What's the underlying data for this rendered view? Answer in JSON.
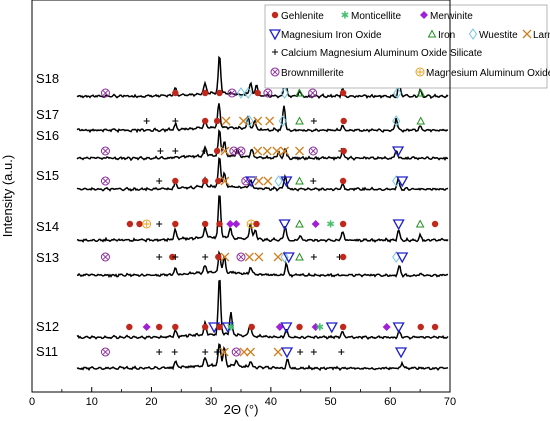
{
  "chart_data": {
    "type": "line",
    "xlabel": "2Θ (°)",
    "ylabel": "Intensity (a.u.)",
    "xlim": [
      0,
      70
    ],
    "xticks": [
      0,
      10,
      20,
      30,
      40,
      50,
      60,
      70
    ],
    "legend_position": "top-right",
    "phases": [
      {
        "id": "gehlenite",
        "label": "Gehlenite",
        "marker": "dot",
        "color": "#c0281c"
      },
      {
        "id": "monticellite",
        "label": "Monticellite",
        "marker": "star",
        "color": "#48c070"
      },
      {
        "id": "merwinite",
        "label": "Merwinite",
        "marker": "diamond",
        "color": "#a020d8"
      },
      {
        "id": "mgfe-oxide",
        "label": "Magnesium Iron Oxide",
        "marker": "triangle-down",
        "color": "#2020c8"
      },
      {
        "id": "iron",
        "label": "Iron",
        "marker": "triangle-up",
        "color": "#209020"
      },
      {
        "id": "wuestite",
        "label": "Wuestite",
        "marker": "diamond-open",
        "color": "#70c8e0"
      },
      {
        "id": "larnite",
        "label": "Larnite",
        "marker": "cross",
        "color": "#d08020"
      },
      {
        "id": "cmas",
        "label": "Calcium Magnesium Aluminum Oxide Silicate",
        "marker": "plus",
        "color": "#000000"
      },
      {
        "id": "brownmillerite",
        "label": "Brownmillerite",
        "marker": "circle-x",
        "color": "#8a2a9a"
      },
      {
        "id": "mgal-oxide",
        "label": "Magnesium Aluminum Oxide",
        "marker": "circle-plus",
        "color": "#e8a020"
      }
    ],
    "series": [
      {
        "name": "S18",
        "peaks": [
          {
            "x": 31.4,
            "h": 38
          },
          {
            "x": 29.0,
            "h": 10
          },
          {
            "x": 24.0,
            "h": 8
          },
          {
            "x": 36.6,
            "h": 13
          },
          {
            "x": 37.6,
            "h": 11
          },
          {
            "x": 42.4,
            "h": 22
          },
          {
            "x": 52.0,
            "h": 8
          },
          {
            "x": 61.5,
            "h": 14
          },
          {
            "x": 65.0,
            "h": 6
          },
          {
            "x": 44.8,
            "h": 5
          }
        ],
        "markers": [
          {
            "x": 12.3,
            "phase": "brownmillerite"
          },
          {
            "x": 24.0,
            "phase": "gehlenite"
          },
          {
            "x": 29.0,
            "phase": "gehlenite"
          },
          {
            "x": 31.4,
            "phase": "gehlenite"
          },
          {
            "x": 33.5,
            "phase": "brownmillerite"
          },
          {
            "x": 35.0,
            "phase": "wuestite"
          },
          {
            "x": 36.2,
            "phase": "wuestite"
          },
          {
            "x": 37.8,
            "phase": "gehlenite"
          },
          {
            "x": 39.5,
            "phase": "brownmillerite"
          },
          {
            "x": 42.3,
            "phase": "wuestite"
          },
          {
            "x": 44.8,
            "phase": "iron"
          },
          {
            "x": 47.0,
            "phase": "brownmillerite"
          },
          {
            "x": 52.1,
            "phase": "gehlenite"
          },
          {
            "x": 61.2,
            "phase": "wuestite"
          },
          {
            "x": 65.1,
            "phase": "iron"
          }
        ]
      },
      {
        "name": "S17",
        "peaks": [
          {
            "x": 31.3,
            "h": 24
          },
          {
            "x": 36.2,
            "h": 12
          },
          {
            "x": 37.3,
            "h": 8
          },
          {
            "x": 42.2,
            "h": 26
          },
          {
            "x": 29.0,
            "h": 6
          },
          {
            "x": 24.0,
            "h": 5
          },
          {
            "x": 52.0,
            "h": 5
          },
          {
            "x": 61.0,
            "h": 12
          },
          {
            "x": 65.0,
            "h": 4
          }
        ],
        "markers": [
          {
            "x": 19.2,
            "phase": "cmas"
          },
          {
            "x": 24.0,
            "phase": "cmas"
          },
          {
            "x": 29.0,
            "phase": "gehlenite"
          },
          {
            "x": 31.0,
            "phase": "gehlenite"
          },
          {
            "x": 32.5,
            "phase": "larnite"
          },
          {
            "x": 35.4,
            "phase": "larnite"
          },
          {
            "x": 36.4,
            "phase": "wuestite"
          },
          {
            "x": 37.8,
            "phase": "larnite"
          },
          {
            "x": 39.8,
            "phase": "larnite"
          },
          {
            "x": 42.0,
            "phase": "wuestite"
          },
          {
            "x": 44.8,
            "phase": "iron"
          },
          {
            "x": 47.2,
            "phase": "cmas"
          },
          {
            "x": 52.2,
            "phase": "gehlenite"
          },
          {
            "x": 61.0,
            "phase": "wuestite"
          },
          {
            "x": 65.1,
            "phase": "iron"
          }
        ]
      },
      {
        "name": "S16",
        "peaks": [
          {
            "x": 31.4,
            "h": 26
          },
          {
            "x": 32.2,
            "h": 14
          },
          {
            "x": 29.0,
            "h": 8
          },
          {
            "x": 34.4,
            "h": 7
          },
          {
            "x": 36.8,
            "h": 8
          },
          {
            "x": 41.3,
            "h": 6
          },
          {
            "x": 42.4,
            "h": 10
          },
          {
            "x": 61.0,
            "h": 8
          },
          {
            "x": 52.0,
            "h": 6
          }
        ],
        "markers": [
          {
            "x": 12.3,
            "phase": "brownmillerite"
          },
          {
            "x": 21.5,
            "phase": "cmas"
          },
          {
            "x": 24.0,
            "phase": "cmas"
          },
          {
            "x": 28.9,
            "phase": "cmas"
          },
          {
            "x": 31.0,
            "phase": "gehlenite"
          },
          {
            "x": 32.3,
            "phase": "larnite"
          },
          {
            "x": 33.8,
            "phase": "brownmillerite"
          },
          {
            "x": 35.0,
            "phase": "brownmillerite"
          },
          {
            "x": 37.8,
            "phase": "larnite"
          },
          {
            "x": 39.4,
            "phase": "larnite"
          },
          {
            "x": 41.0,
            "phase": "larnite"
          },
          {
            "x": 42.3,
            "phase": "larnite"
          },
          {
            "x": 44.8,
            "phase": "larnite"
          },
          {
            "x": 47.1,
            "phase": "brownmillerite"
          },
          {
            "x": 51.8,
            "phase": "cmas"
          },
          {
            "x": 52.2,
            "phase": "gehlenite"
          },
          {
            "x": 61.3,
            "phase": "mgfe-oxide"
          }
        ]
      },
      {
        "name": "S15",
        "peaks": [
          {
            "x": 31.4,
            "h": 30
          },
          {
            "x": 32.2,
            "h": 14
          },
          {
            "x": 29.0,
            "h": 8
          },
          {
            "x": 24.0,
            "h": 6
          },
          {
            "x": 36.6,
            "h": 8
          },
          {
            "x": 42.4,
            "h": 14
          },
          {
            "x": 52.0,
            "h": 5
          },
          {
            "x": 61.3,
            "h": 10
          }
        ],
        "markers": [
          {
            "x": 12.3,
            "phase": "brownmillerite"
          },
          {
            "x": 21.3,
            "phase": "cmas"
          },
          {
            "x": 24.0,
            "phase": "gehlenite"
          },
          {
            "x": 29.0,
            "phase": "gehlenite"
          },
          {
            "x": 31.2,
            "phase": "gehlenite"
          },
          {
            "x": 32.3,
            "phase": "larnite"
          },
          {
            "x": 35.8,
            "phase": "brownmillerite"
          },
          {
            "x": 36.7,
            "phase": "mgfe-oxide"
          },
          {
            "x": 38.0,
            "phase": "larnite"
          },
          {
            "x": 39.5,
            "phase": "larnite"
          },
          {
            "x": 41.3,
            "phase": "wuestite"
          },
          {
            "x": 42.6,
            "phase": "mgfe-oxide"
          },
          {
            "x": 44.8,
            "phase": "iron"
          },
          {
            "x": 47.1,
            "phase": "cmas"
          },
          {
            "x": 52.1,
            "phase": "gehlenite"
          },
          {
            "x": 61.0,
            "phase": "wuestite"
          },
          {
            "x": 62.0,
            "phase": "mgfe-oxide"
          }
        ]
      },
      {
        "name": "S14",
        "peaks": [
          {
            "x": 31.4,
            "h": 44
          },
          {
            "x": 29.0,
            "h": 10
          },
          {
            "x": 24.0,
            "h": 10
          },
          {
            "x": 33.2,
            "h": 10
          },
          {
            "x": 36.6,
            "h": 16
          },
          {
            "x": 37.4,
            "h": 10
          },
          {
            "x": 42.4,
            "h": 14
          },
          {
            "x": 52.0,
            "h": 8
          },
          {
            "x": 61.4,
            "h": 10
          },
          {
            "x": 44.9,
            "h": 5
          },
          {
            "x": 65.0,
            "h": 5
          }
        ],
        "markers": [
          {
            "x": 16.4,
            "phase": "gehlenite"
          },
          {
            "x": 18.0,
            "phase": "gehlenite"
          },
          {
            "x": 19.2,
            "phase": "mgal-oxide"
          },
          {
            "x": 21.3,
            "phase": "cmas"
          },
          {
            "x": 24.0,
            "phase": "gehlenite"
          },
          {
            "x": 29.0,
            "phase": "gehlenite"
          },
          {
            "x": 31.4,
            "phase": "gehlenite"
          },
          {
            "x": 33.2,
            "phase": "merwinite"
          },
          {
            "x": 34.2,
            "phase": "merwinite"
          },
          {
            "x": 36.7,
            "phase": "mgal-oxide"
          },
          {
            "x": 37.6,
            "phase": "gehlenite"
          },
          {
            "x": 42.3,
            "phase": "mgfe-oxide"
          },
          {
            "x": 44.8,
            "phase": "iron"
          },
          {
            "x": 47.5,
            "phase": "merwinite"
          },
          {
            "x": 50.0,
            "phase": "monticellite"
          },
          {
            "x": 52.1,
            "phase": "gehlenite"
          },
          {
            "x": 61.4,
            "phase": "mgfe-oxide"
          },
          {
            "x": 65.0,
            "phase": "iron"
          },
          {
            "x": 67.5,
            "phase": "gehlenite"
          }
        ]
      },
      {
        "name": "S13",
        "peaks": [
          {
            "x": 31.4,
            "h": 20
          },
          {
            "x": 32.2,
            "h": 16
          },
          {
            "x": 29.0,
            "h": 7
          },
          {
            "x": 24.0,
            "h": 6
          },
          {
            "x": 36.6,
            "h": 7
          },
          {
            "x": 42.6,
            "h": 12
          },
          {
            "x": 61.5,
            "h": 9
          }
        ],
        "markers": [
          {
            "x": 12.3,
            "phase": "brownmillerite"
          },
          {
            "x": 21.3,
            "phase": "cmas"
          },
          {
            "x": 23.5,
            "phase": "gehlenite"
          },
          {
            "x": 24.0,
            "phase": "cmas"
          },
          {
            "x": 29.0,
            "phase": "cmas"
          },
          {
            "x": 31.2,
            "phase": "gehlenite"
          },
          {
            "x": 32.3,
            "phase": "larnite"
          },
          {
            "x": 35.0,
            "phase": "brownmillerite"
          },
          {
            "x": 36.4,
            "phase": "larnite"
          },
          {
            "x": 38.0,
            "phase": "larnite"
          },
          {
            "x": 41.2,
            "phase": "larnite"
          },
          {
            "x": 42.3,
            "phase": "wuestite"
          },
          {
            "x": 43.0,
            "phase": "mgfe-oxide"
          },
          {
            "x": 44.8,
            "phase": "iron"
          },
          {
            "x": 47.2,
            "phase": "cmas"
          },
          {
            "x": 51.5,
            "phase": "cmas"
          },
          {
            "x": 52.1,
            "phase": "gehlenite"
          },
          {
            "x": 61.0,
            "phase": "wuestite"
          },
          {
            "x": 62.0,
            "phase": "mgfe-oxide"
          }
        ]
      },
      {
        "name": "S12",
        "peaks": [
          {
            "x": 31.4,
            "h": 58
          },
          {
            "x": 33.3,
            "h": 22
          },
          {
            "x": 29.0,
            "h": 12
          },
          {
            "x": 24.0,
            "h": 6
          },
          {
            "x": 36.5,
            "h": 12
          },
          {
            "x": 42.6,
            "h": 8
          },
          {
            "x": 52.0,
            "h": 6
          },
          {
            "x": 61.5,
            "h": 6
          }
        ],
        "markers": [
          {
            "x": 16.3,
            "phase": "gehlenite"
          },
          {
            "x": 19.2,
            "phase": "merwinite"
          },
          {
            "x": 21.3,
            "phase": "gehlenite"
          },
          {
            "x": 24.0,
            "phase": "gehlenite"
          },
          {
            "x": 29.0,
            "phase": "gehlenite"
          },
          {
            "x": 30.5,
            "phase": "mgfe-oxide"
          },
          {
            "x": 31.4,
            "phase": "gehlenite"
          },
          {
            "x": 32.8,
            "phase": "mgfe-oxide"
          },
          {
            "x": 33.3,
            "phase": "monticellite"
          },
          {
            "x": 36.8,
            "phase": "gehlenite"
          },
          {
            "x": 41.5,
            "phase": "merwinite"
          },
          {
            "x": 42.6,
            "phase": "mgfe-oxide"
          },
          {
            "x": 44.8,
            "phase": "gehlenite"
          },
          {
            "x": 47.5,
            "phase": "merwinite"
          },
          {
            "x": 48.2,
            "phase": "monticellite"
          },
          {
            "x": 50.2,
            "phase": "mgfe-oxide"
          },
          {
            "x": 52.1,
            "phase": "gehlenite"
          },
          {
            "x": 59.4,
            "phase": "merwinite"
          },
          {
            "x": 61.4,
            "phase": "mgfe-oxide"
          },
          {
            "x": 65.1,
            "phase": "gehlenite"
          },
          {
            "x": 67.5,
            "phase": "gehlenite"
          }
        ]
      },
      {
        "name": "S11",
        "peaks": [
          {
            "x": 31.4,
            "h": 22
          },
          {
            "x": 32.2,
            "h": 18
          },
          {
            "x": 29.0,
            "h": 8
          },
          {
            "x": 24.0,
            "h": 6
          },
          {
            "x": 34.2,
            "h": 6
          },
          {
            "x": 36.6,
            "h": 6
          },
          {
            "x": 42.8,
            "h": 9
          },
          {
            "x": 62.0,
            "h": 5
          }
        ],
        "markers": [
          {
            "x": 12.3,
            "phase": "brownmillerite"
          },
          {
            "x": 21.3,
            "phase": "cmas"
          },
          {
            "x": 23.9,
            "phase": "cmas"
          },
          {
            "x": 29.0,
            "phase": "cmas"
          },
          {
            "x": 31.0,
            "phase": "cmas"
          },
          {
            "x": 32.2,
            "phase": "larnite"
          },
          {
            "x": 34.2,
            "phase": "brownmillerite"
          },
          {
            "x": 35.5,
            "phase": "larnite"
          },
          {
            "x": 36.6,
            "phase": "larnite"
          },
          {
            "x": 41.2,
            "phase": "larnite"
          },
          {
            "x": 42.7,
            "phase": "mgfe-oxide"
          },
          {
            "x": 44.9,
            "phase": "cmas"
          },
          {
            "x": 47.2,
            "phase": "cmas"
          },
          {
            "x": 51.8,
            "phase": "cmas"
          },
          {
            "x": 61.8,
            "phase": "mgfe-oxide"
          }
        ]
      }
    ]
  }
}
